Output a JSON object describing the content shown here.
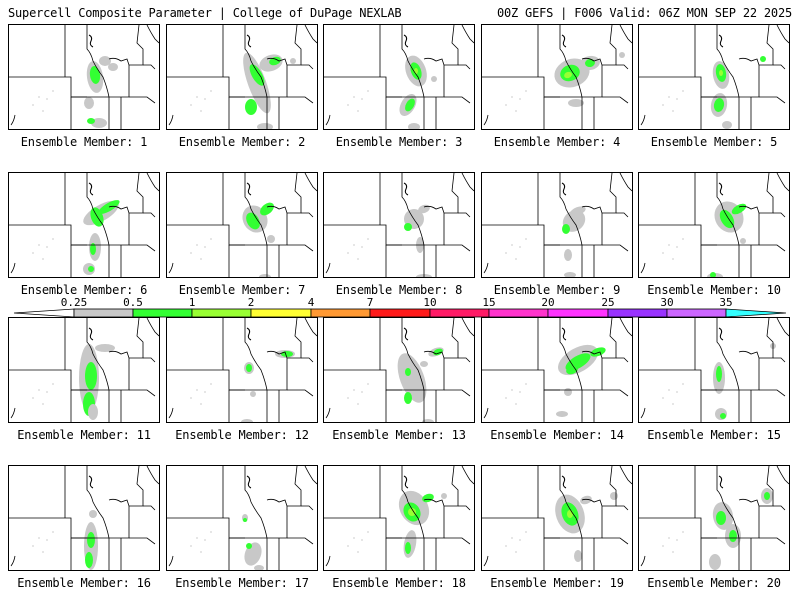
{
  "header": {
    "left": "Supercell Composite Parameter | College of DuPage NEXLAB",
    "right": "00Z GEFS | F006 Valid: 06Z MON SEP 22 2025"
  },
  "colorbar": {
    "labels": [
      "0.25",
      "0.5",
      "1",
      "2",
      "4",
      "7",
      "10",
      "15",
      "20",
      "25",
      "30",
      "35"
    ],
    "colors": [
      "#c8c8c8",
      "#33ff33",
      "#99ff33",
      "#ffff33",
      "#ff9933",
      "#ff1a1a",
      "#ff1a66",
      "#ff33cc",
      "#ff33ff",
      "#9933ff",
      "#cc66ff",
      "#33ffff"
    ],
    "left_cap_color": "#ffffff",
    "right_cap_color": "#33ffff"
  },
  "panels": [
    {
      "label": "Ensemble Member: 1"
    },
    {
      "label": "Ensemble Member: 2"
    },
    {
      "label": "Ensemble Member: 3"
    },
    {
      "label": "Ensemble Member: 4"
    },
    {
      "label": "Ensemble Member: 5"
    },
    {
      "label": "Ensemble Member: 6"
    },
    {
      "label": "Ensemble Member: 7"
    },
    {
      "label": "Ensemble Member: 8"
    },
    {
      "label": "Ensemble Member: 9"
    },
    {
      "label": "Ensemble Member: 10"
    },
    {
      "label": "Ensemble Member: 11"
    },
    {
      "label": "Ensemble Member: 12"
    },
    {
      "label": "Ensemble Member: 13"
    },
    {
      "label": "Ensemble Member: 14"
    },
    {
      "label": "Ensemble Member: 15"
    },
    {
      "label": "Ensemble Member: 16"
    },
    {
      "label": "Ensemble Member: 17"
    },
    {
      "label": "Ensemble Member: 18"
    },
    {
      "label": "Ensemble Member: 19"
    },
    {
      "label": "Ensemble Member: 20"
    }
  ],
  "colors": {
    "light_field": "#c8c8c8",
    "green_field": "#33ff33",
    "yellow_green_field": "#99ff33",
    "borders": "#000000"
  }
}
